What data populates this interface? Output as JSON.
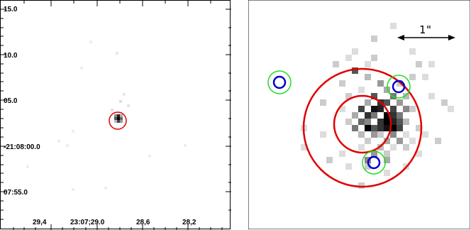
{
  "left": {
    "y_ticks": [
      "15.0",
      "10.0",
      "05.0",
      "-21:08:00.0",
      "07:55.0"
    ],
    "x_ticks": [
      "29,4",
      "23:07;29.0",
      "28,6",
      "28,2"
    ]
  },
  "right": {
    "scale_bar_label": "1\""
  },
  "colors": {
    "red_circle": "#e00000",
    "green_circle": "#22dd22",
    "blue_circle": "#0000cc",
    "pixel_dark": "#000000"
  }
}
